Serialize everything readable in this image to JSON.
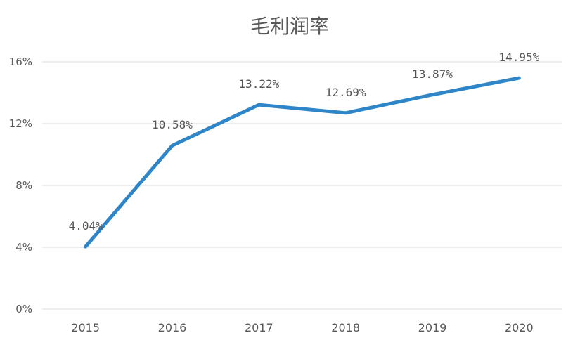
{
  "chart_data": {
    "type": "line",
    "title": "毛利润率",
    "categories": [
      "2015",
      "2016",
      "2017",
      "2018",
      "2019",
      "2020"
    ],
    "series": [
      {
        "values": [
          4.04,
          10.58,
          13.22,
          12.69,
          13.87,
          14.95
        ],
        "data_labels": [
          "4.04%",
          "10.58%",
          "13.22%",
          "12.69%",
          "13.87%",
          "14.95%"
        ],
        "color": "#2E86C9"
      }
    ],
    "ylim": [
      0,
      16
    ],
    "yticks": [
      "0%",
      "4%",
      "8%",
      "12%",
      "16%"
    ],
    "ytick_values": [
      0,
      4,
      8,
      12,
      16
    ],
    "grid": true,
    "legend": "none",
    "colors": {
      "line": "#2E86C9",
      "grid": "#D9D9D9",
      "text": "#595959"
    }
  }
}
